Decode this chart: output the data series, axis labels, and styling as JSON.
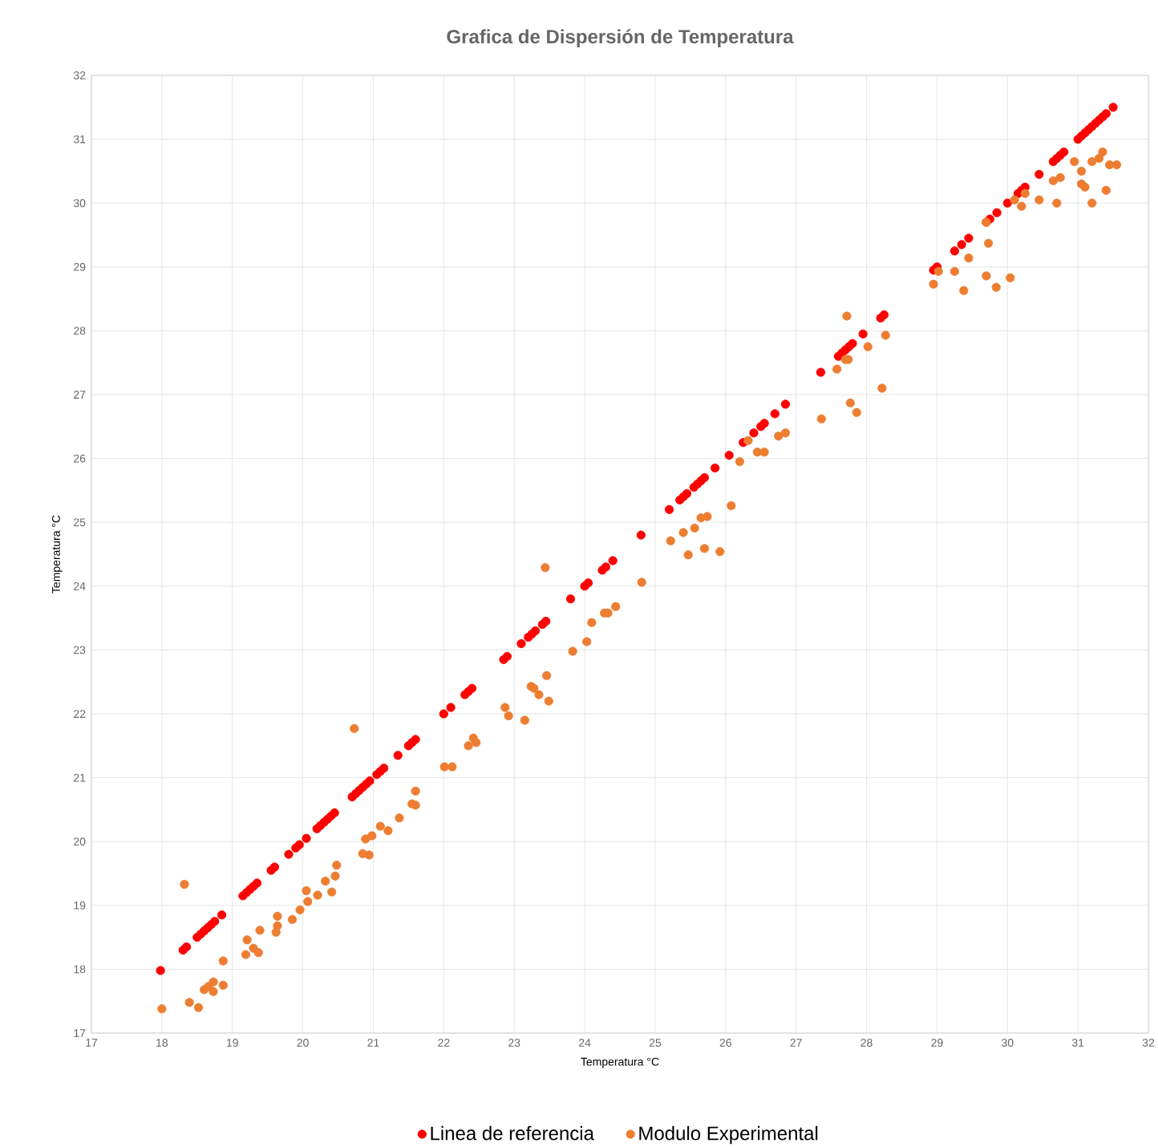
{
  "chart_data": {
    "type": "scatter",
    "title": "Grafica de Dispersión de Temperatura",
    "xlabel": "Temperatura °C",
    "ylabel": "Temperatura °C",
    "xlim": [
      17,
      32
    ],
    "ylim": [
      17,
      32
    ],
    "xticks": [
      17,
      18,
      19,
      20,
      21,
      22,
      23,
      24,
      25,
      26,
      27,
      28,
      29,
      30,
      31,
      32
    ],
    "yticks": [
      17,
      18,
      19,
      20,
      21,
      22,
      23,
      24,
      25,
      26,
      27,
      28,
      29,
      30,
      31,
      32
    ],
    "grid": true,
    "legend": "bottom",
    "marker": "circle",
    "series": [
      {
        "name": "Linea de referencia",
        "color": "#ff0000",
        "x": [
          17.98,
          18.3,
          18.35,
          18.5,
          18.55,
          18.6,
          18.65,
          18.7,
          18.75,
          18.85,
          19.15,
          19.2,
          19.25,
          19.3,
          19.35,
          19.55,
          19.6,
          19.8,
          19.9,
          19.95,
          20.05,
          20.2,
          20.25,
          20.3,
          20.35,
          20.4,
          20.45,
          20.7,
          20.75,
          20.8,
          20.85,
          20.9,
          20.95,
          21.05,
          21.1,
          21.15,
          21.35,
          21.5,
          21.55,
          21.6,
          22.0,
          22.1,
          22.3,
          22.35,
          22.4,
          22.85,
          22.9,
          23.1,
          23.2,
          23.25,
          23.3,
          23.4,
          23.45,
          23.8,
          24.0,
          24.05,
          24.25,
          24.3,
          24.4,
          24.8,
          25.2,
          25.35,
          25.4,
          25.45,
          25.55,
          25.6,
          25.65,
          25.7,
          25.85,
          26.05,
          26.25,
          26.4,
          26.5,
          26.55,
          26.7,
          26.85,
          27.35,
          27.6,
          27.65,
          27.7,
          27.75,
          27.8,
          27.95,
          28.2,
          28.25,
          28.95,
          29.0,
          29.25,
          29.35,
          29.45,
          29.7,
          29.75,
          29.85,
          30.0,
          30.15,
          30.2,
          30.25,
          30.45,
          30.65,
          30.7,
          30.75,
          30.8,
          31.0,
          31.05,
          31.1,
          31.15,
          31.2,
          31.25,
          31.3,
          31.35,
          31.4,
          31.5
        ],
        "values": [
          17.98,
          18.3,
          18.35,
          18.5,
          18.55,
          18.6,
          18.65,
          18.7,
          18.75,
          18.85,
          19.15,
          19.2,
          19.25,
          19.3,
          19.35,
          19.55,
          19.6,
          19.8,
          19.9,
          19.95,
          20.05,
          20.2,
          20.25,
          20.3,
          20.35,
          20.4,
          20.45,
          20.7,
          20.75,
          20.8,
          20.85,
          20.9,
          20.95,
          21.05,
          21.1,
          21.15,
          21.35,
          21.5,
          21.55,
          21.6,
          22.0,
          22.1,
          22.3,
          22.35,
          22.4,
          22.85,
          22.9,
          23.1,
          23.2,
          23.25,
          23.3,
          23.4,
          23.45,
          23.8,
          24.0,
          24.05,
          24.25,
          24.3,
          24.4,
          24.8,
          25.2,
          25.35,
          25.4,
          25.45,
          25.55,
          25.6,
          25.65,
          25.7,
          25.85,
          26.05,
          26.25,
          26.4,
          26.5,
          26.55,
          26.7,
          26.85,
          27.35,
          27.6,
          27.65,
          27.7,
          27.75,
          27.8,
          27.95,
          28.2,
          28.25,
          28.95,
          29.0,
          29.25,
          29.35,
          29.45,
          29.7,
          29.75,
          29.85,
          30.0,
          30.15,
          30.2,
          30.25,
          30.45,
          30.65,
          30.7,
          30.75,
          30.8,
          31.0,
          31.05,
          31.1,
          31.15,
          31.2,
          31.25,
          31.3,
          31.35,
          31.4,
          31.5
        ]
      },
      {
        "name": "Modulo Experimental",
        "color": "#ed7d31",
        "x": [
          18.0,
          18.32,
          18.39,
          18.52,
          18.6,
          18.66,
          18.73,
          18.73,
          18.87,
          18.87,
          19.19,
          19.21,
          19.3,
          19.37,
          19.39,
          19.62,
          19.64,
          19.64,
          19.85,
          19.96,
          20.05,
          20.07,
          20.21,
          20.32,
          20.41,
          20.46,
          20.48,
          20.73,
          20.85,
          20.94,
          20.89,
          20.98,
          21.1,
          21.21,
          21.37,
          21.55,
          21.6,
          21.6,
          22.01,
          22.12,
          22.35,
          22.42,
          22.46,
          22.87,
          22.92,
          23.15,
          23.24,
          23.28,
          23.35,
          23.46,
          23.49,
          23.44,
          23.83,
          24.03,
          24.1,
          24.28,
          24.33,
          24.44,
          24.81,
          25.22,
          25.4,
          25.47,
          25.56,
          25.7,
          25.92,
          25.65,
          25.74,
          26.08,
          26.32,
          26.2,
          26.45,
          26.55,
          26.75,
          26.85,
          27.36,
          27.58,
          27.72,
          27.7,
          27.74,
          27.77,
          27.86,
          28.02,
          28.22,
          28.27,
          28.95,
          29.02,
          29.25,
          29.38,
          29.45,
          29.7,
          29.84,
          30.04,
          29.73,
          29.7,
          30.1,
          30.2,
          30.25,
          30.45,
          30.65,
          30.7,
          30.75,
          30.95,
          31.05,
          31.1,
          31.2,
          31.2,
          31.3,
          31.35,
          31.4,
          31.45,
          31.55,
          31.05
        ],
        "values": [
          17.38,
          19.33,
          17.48,
          17.4,
          17.68,
          17.73,
          17.8,
          17.65,
          17.75,
          18.13,
          18.23,
          18.46,
          18.33,
          18.26,
          18.61,
          18.58,
          18.83,
          18.68,
          18.78,
          18.93,
          19.23,
          19.06,
          19.16,
          19.38,
          19.21,
          19.46,
          19.63,
          21.77,
          19.81,
          19.79,
          20.04,
          20.09,
          20.24,
          20.17,
          20.37,
          20.59,
          20.79,
          20.57,
          21.17,
          21.17,
          21.5,
          21.62,
          21.55,
          22.1,
          21.97,
          21.9,
          22.43,
          22.4,
          22.3,
          22.6,
          22.2,
          24.29,
          22.98,
          23.13,
          23.43,
          23.58,
          23.58,
          23.68,
          24.06,
          24.71,
          24.84,
          24.49,
          24.91,
          24.59,
          24.54,
          25.07,
          25.09,
          25.26,
          26.28,
          25.95,
          26.1,
          26.1,
          26.35,
          26.4,
          26.62,
          27.4,
          28.23,
          27.55,
          27.55,
          26.87,
          26.72,
          27.75,
          27.1,
          27.93,
          28.73,
          28.93,
          28.93,
          28.63,
          29.14,
          28.86,
          28.68,
          28.83,
          29.37,
          29.7,
          30.05,
          29.95,
          30.15,
          30.05,
          30.35,
          30.0,
          30.4,
          30.65,
          30.5,
          30.25,
          30.0,
          30.65,
          30.7,
          30.8,
          30.2,
          30.6,
          30.6,
          30.3
        ]
      }
    ]
  }
}
